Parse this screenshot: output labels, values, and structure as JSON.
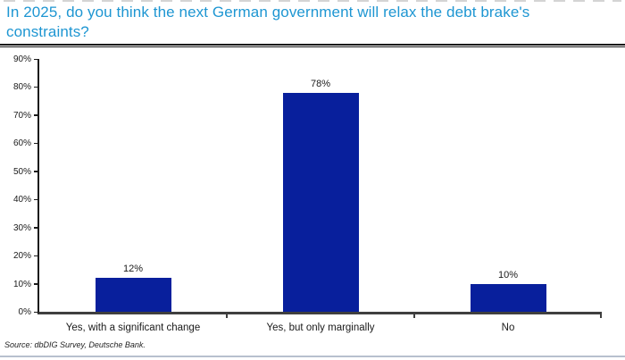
{
  "title": "In 2025, do you think the next German government will relax the debt brake's constraints?",
  "source": "Source: dbDIG Survey, Deutsche Bank.",
  "colors": {
    "title": "#1E96D2",
    "bar": "#081F9C",
    "axis": "#3F3F3F",
    "bottom_rule": "#B7C0CE"
  },
  "chart_data": {
    "type": "bar",
    "title": "In 2025, do you think the next German government will relax the debt brake's constraints?",
    "categories": [
      "Yes, with a significant change",
      "Yes, but only marginally",
      "No"
    ],
    "values": [
      12,
      78,
      10
    ],
    "value_labels": [
      "12%",
      "78%",
      "10%"
    ],
    "xlabel": "",
    "ylabel": "",
    "ylim": [
      0,
      90
    ],
    "ytick_step": 10,
    "ytick_labels": [
      "0%",
      "10%",
      "20%",
      "30%",
      "40%",
      "50%",
      "60%",
      "70%",
      "80%",
      "90%"
    ],
    "grid": false,
    "legend": false,
    "source": "Source: dbDIG Survey, Deutsche Bank."
  }
}
